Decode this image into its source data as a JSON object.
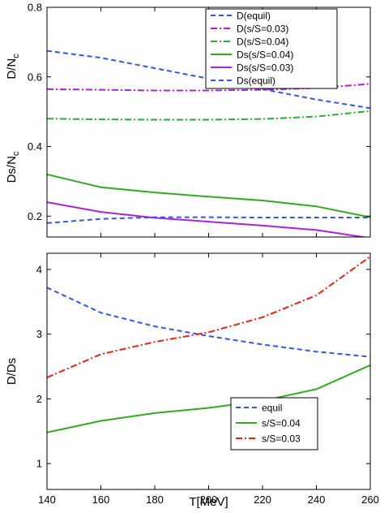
{
  "chart_data": [
    {
      "type": "line",
      "xlabel": "",
      "ylabel_parts": [
        {
          "text": "D/N",
          "sub": "c"
        },
        {
          "text": "Ds/N",
          "sub": "c"
        }
      ],
      "xlim": [
        140,
        260
      ],
      "ylim": [
        0.14,
        0.8
      ],
      "xticks": [
        140,
        160,
        180,
        200,
        220,
        240,
        260
      ],
      "yticks": [
        0.2,
        0.4,
        0.6,
        0.8
      ],
      "ytick_labels": [
        "0.2",
        "0.4",
        "0.6",
        "0.8"
      ],
      "grid": false,
      "legend_position": "top-right",
      "series": [
        {
          "name": "D(equil)",
          "color": "#3355ee",
          "dash": "dashed",
          "x": [
            140,
            160,
            180,
            200,
            220,
            240,
            260
          ],
          "y": [
            0.675,
            0.655,
            0.625,
            0.595,
            0.565,
            0.535,
            0.51
          ]
        },
        {
          "name": "D(s/S=0.03)",
          "color": "#aa22dd",
          "dash": "dashdot",
          "x": [
            140,
            160,
            180,
            200,
            220,
            240,
            260
          ],
          "y": [
            0.565,
            0.563,
            0.561,
            0.561,
            0.563,
            0.568,
            0.58
          ]
        },
        {
          "name": "D(s/S=0.04)",
          "color": "#33aa33",
          "dash": "dashdot",
          "x": [
            140,
            160,
            180,
            200,
            220,
            240,
            260
          ],
          "y": [
            0.48,
            0.478,
            0.477,
            0.477,
            0.479,
            0.486,
            0.502
          ]
        },
        {
          "name": "Ds(s/S=0.04)",
          "color": "#33aa22",
          "dash": "solid",
          "x": [
            140,
            160,
            180,
            200,
            220,
            240,
            260
          ],
          "y": [
            0.32,
            0.283,
            0.268,
            0.256,
            0.245,
            0.228,
            0.197
          ]
        },
        {
          "name": "Ds(s/S=0.03)",
          "color": "#aa22dd",
          "dash": "solid",
          "x": [
            140,
            160,
            180,
            200,
            220,
            240,
            260
          ],
          "y": [
            0.24,
            0.212,
            0.195,
            0.184,
            0.173,
            0.16,
            0.137
          ]
        },
        {
          "name": "Ds(equil)",
          "color": "#3355ee",
          "dash": "dashed",
          "x": [
            140,
            160,
            180,
            200,
            220,
            240,
            260
          ],
          "y": [
            0.18,
            0.192,
            0.197,
            0.197,
            0.196,
            0.196,
            0.196
          ]
        }
      ]
    },
    {
      "type": "line",
      "xlabel": "T[MeV]",
      "ylabel": "D/Ds",
      "xlim": [
        140,
        260
      ],
      "ylim": [
        0.6,
        4.25
      ],
      "xticks": [
        140,
        160,
        180,
        200,
        220,
        240,
        260
      ],
      "yticks": [
        1,
        2,
        3,
        4
      ],
      "ytick_labels": [
        "1",
        "2",
        "3",
        "4"
      ],
      "grid": false,
      "legend_position": "bottom-right",
      "series": [
        {
          "name": "equil",
          "color": "#3355ee",
          "dash": "dashed",
          "x": [
            140,
            160,
            180,
            200,
            220,
            240,
            260
          ],
          "y": [
            3.72,
            3.33,
            3.12,
            2.97,
            2.84,
            2.73,
            2.65
          ]
        },
        {
          "name": "s/S=0.04",
          "color": "#33aa22",
          "dash": "solid",
          "x": [
            140,
            160,
            180,
            200,
            220,
            240,
            260
          ],
          "y": [
            1.48,
            1.66,
            1.78,
            1.86,
            1.97,
            2.15,
            2.52
          ]
        },
        {
          "name": "s/S=0.03",
          "color": "#ee2211",
          "dash": "dashdot",
          "x": [
            140,
            160,
            180,
            200,
            220,
            240,
            260
          ],
          "y": [
            2.33,
            2.69,
            2.88,
            3.03,
            3.26,
            3.6,
            4.2
          ]
        }
      ]
    }
  ]
}
